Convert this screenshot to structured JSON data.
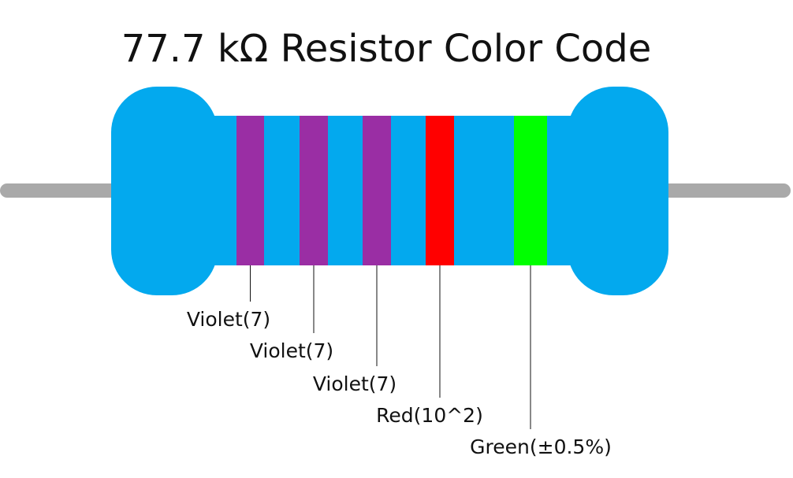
{
  "title": "77.7 kΩ Resistor Color Code",
  "bands": [
    {
      "label": "Violet(7)",
      "color": "#9a2ea4"
    },
    {
      "label": "Violet(7)",
      "color": "#9a2ea4"
    },
    {
      "label": "Violet(7)",
      "color": "#9a2ea4"
    },
    {
      "label": "Red(10^2)",
      "color": "#ff0000"
    },
    {
      "label": "Green(±0.5%)",
      "color": "#00ff00"
    }
  ]
}
